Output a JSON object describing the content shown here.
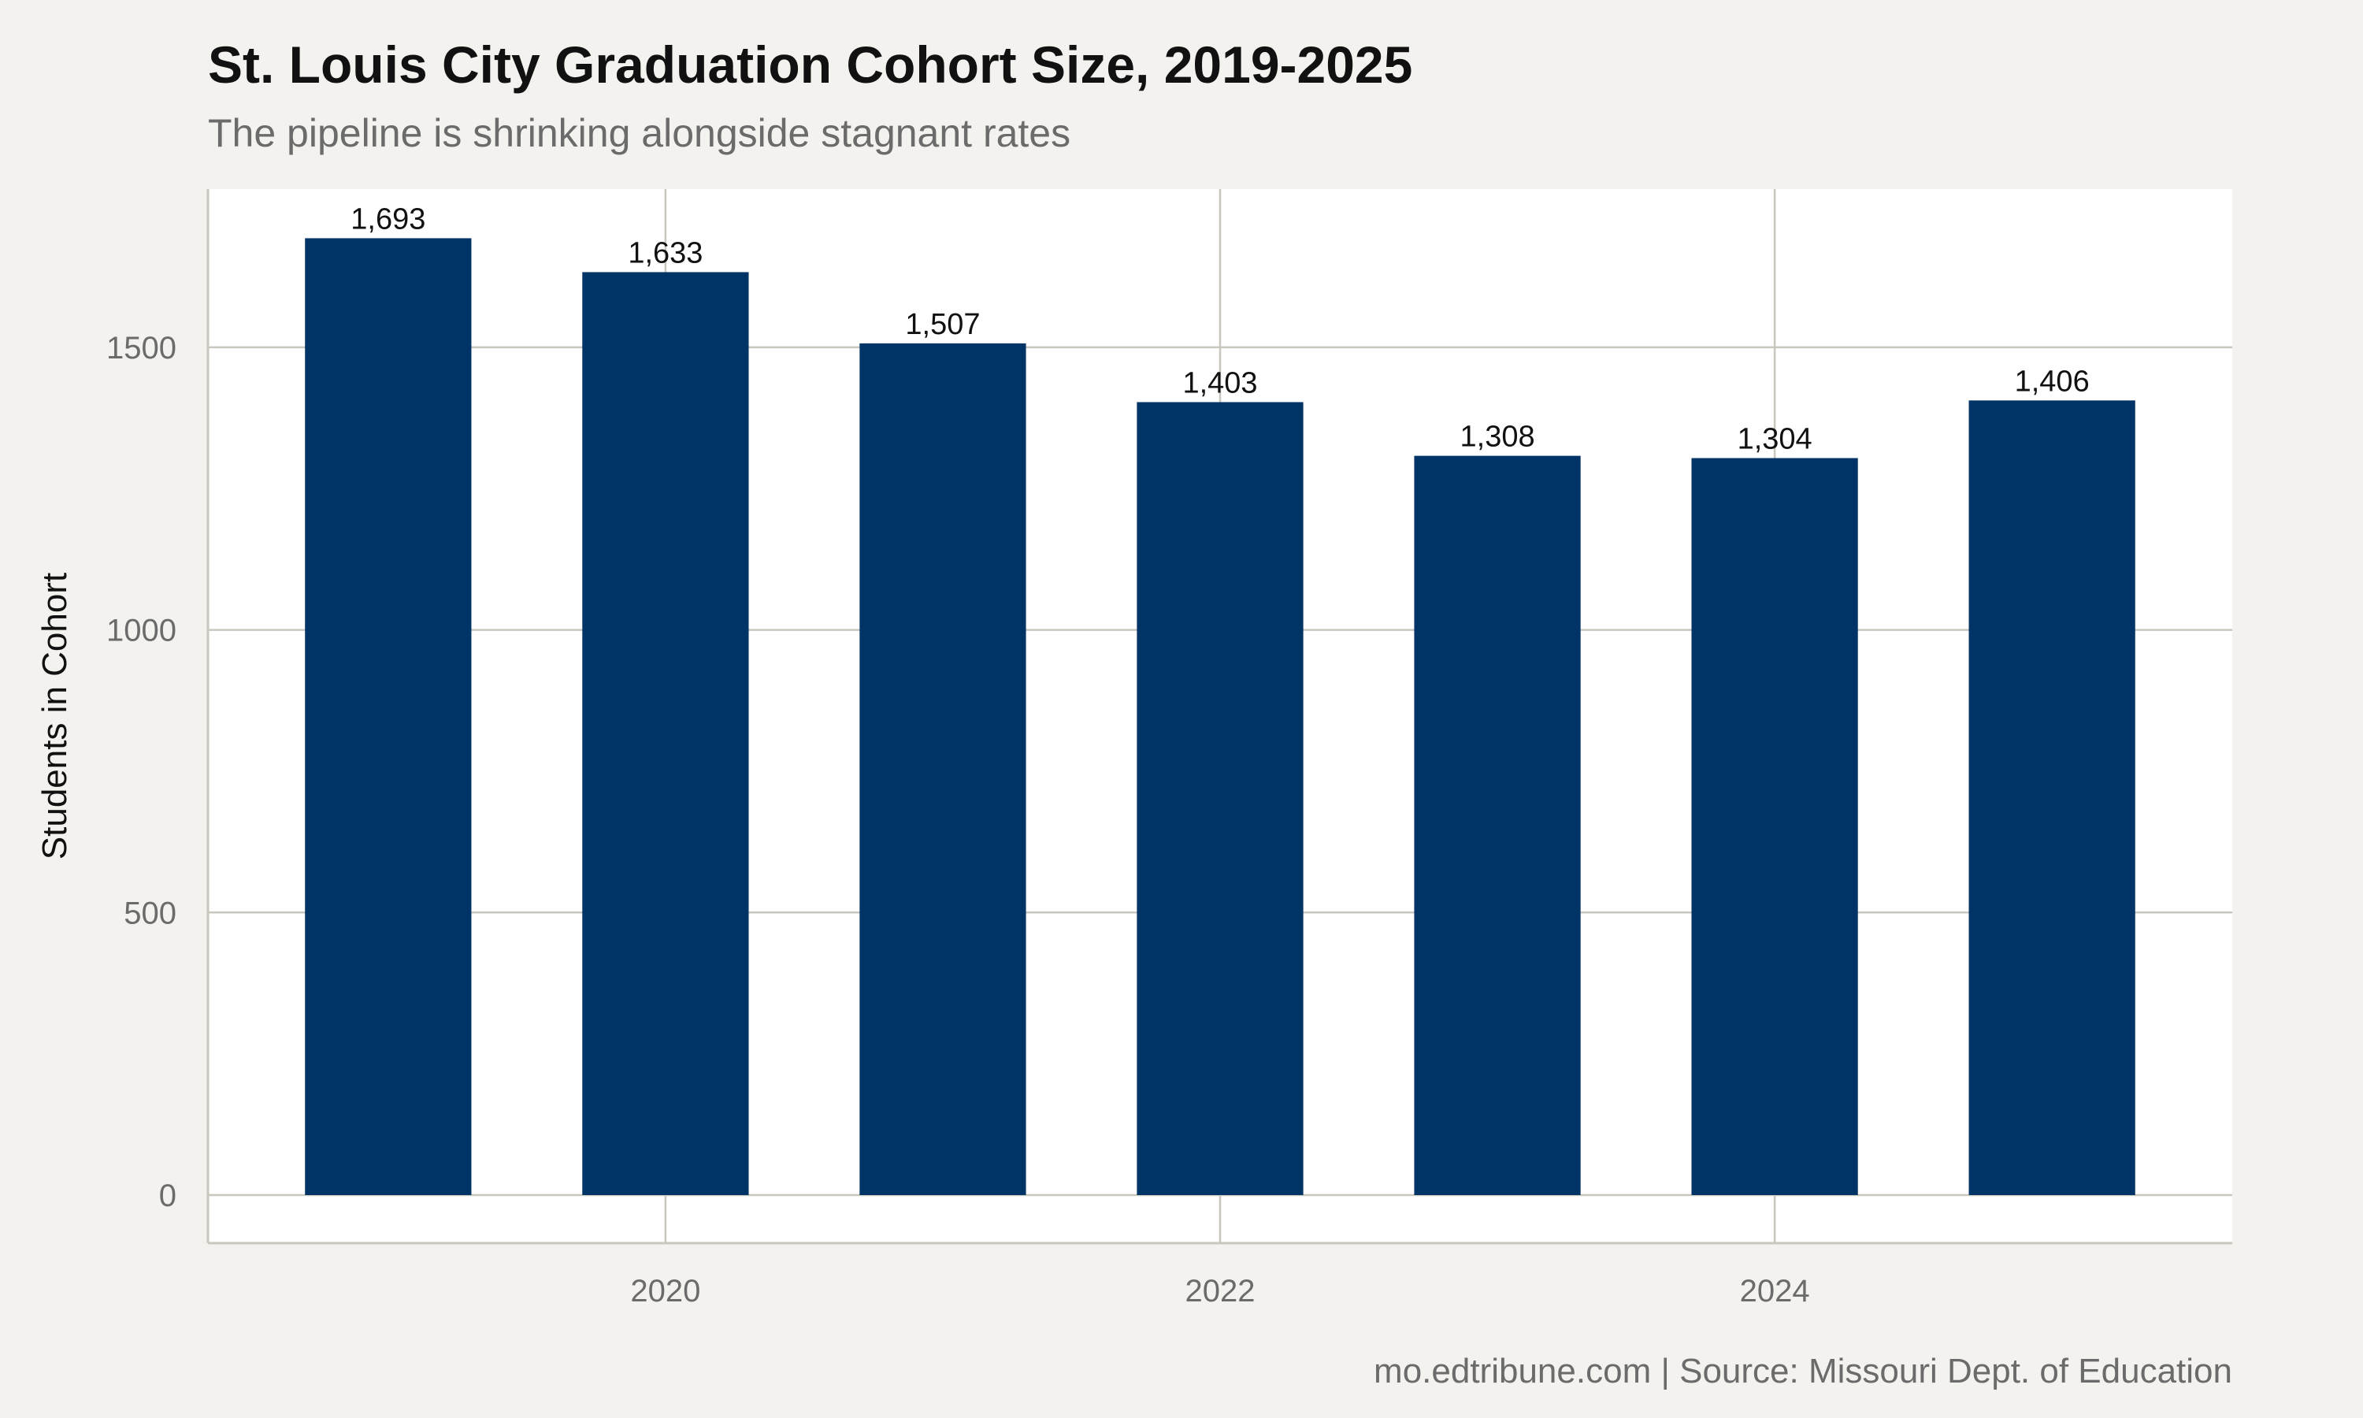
{
  "chart_data": {
    "type": "bar",
    "title": "St. Louis City Graduation Cohort Size, 2019-2025",
    "subtitle": "The pipeline is shrinking alongside stagnant rates",
    "caption": "mo.edtribune.com | Source: Missouri Dept. of Education",
    "xlabel": "",
    "ylabel": "Students in Cohort",
    "x": [
      2019,
      2020,
      2021,
      2022,
      2023,
      2024,
      2025
    ],
    "values": [
      1693,
      1633,
      1507,
      1403,
      1308,
      1304,
      1406
    ],
    "data_labels": [
      "1,693",
      "1,633",
      "1,507",
      "1,403",
      "1,308",
      "1,304",
      "1,406"
    ],
    "x_ticks": [
      2020,
      2022,
      2024
    ],
    "x_tick_labels": [
      "2020",
      "2022",
      "2024"
    ],
    "y_ticks": [
      0,
      500,
      1000,
      1500
    ],
    "y_tick_labels": [
      "0",
      "500",
      "1000",
      "1500"
    ],
    "ylim": [
      -85,
      1780
    ],
    "xlim": [
      2018.35,
      2025.65
    ],
    "grid": true,
    "colors": {
      "bar": "#003366",
      "background": "#f4f2ee",
      "panel": "#ffffff",
      "grid": "#c8c6bd"
    }
  }
}
